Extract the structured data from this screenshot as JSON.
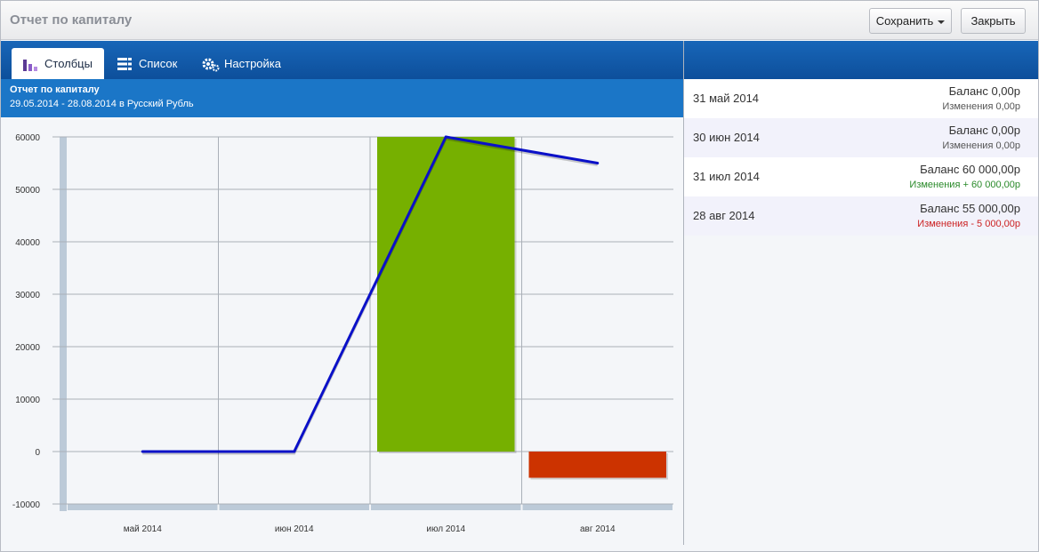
{
  "window": {
    "title": "Отчет по капиталу"
  },
  "toolbar": {
    "save_label": "Сохранить",
    "close_label": "Закрыть"
  },
  "tabs": [
    {
      "label": "Столбцы",
      "icon": "bar-chart-icon",
      "active": true
    },
    {
      "label": "Список",
      "icon": "list-icon",
      "active": false
    },
    {
      "label": "Настройка",
      "icon": "gears-icon",
      "active": false
    }
  ],
  "report": {
    "title": "Отчет по капиталу",
    "range": "29.05.2014 - 28.08.2014 в Русский Рубль"
  },
  "colors": {
    "header_blue": "#1b76c7",
    "positive": "#76b000",
    "negative": "#cc3300",
    "line": "#0a10c8"
  },
  "chart_data": {
    "type": "bar",
    "categories": [
      "май 2014",
      "июн 2014",
      "июл 2014",
      "авг 2014"
    ],
    "series": [
      {
        "kind": "bar",
        "values": [
          0,
          0,
          60000,
          -5000
        ]
      },
      {
        "kind": "line",
        "values": [
          0,
          0,
          60000,
          55000
        ]
      }
    ],
    "yticks": [
      "60000",
      "50000",
      "40000",
      "30000",
      "20000",
      "10000",
      "0",
      "-10000"
    ],
    "ylim": [
      -10000,
      60000
    ],
    "grid": true
  },
  "entries": [
    {
      "date": "31 май 2014",
      "balance": "Баланс 0,00р",
      "change": "Изменения  0,00р",
      "kind": "neutral"
    },
    {
      "date": "30 июн 2014",
      "balance": "Баланс 0,00р",
      "change": "Изменения  0,00р",
      "kind": "neutral"
    },
    {
      "date": "31 июл 2014",
      "balance": "Баланс 60 000,00р",
      "change": "Изменения + 60 000,00р",
      "kind": "pos"
    },
    {
      "date": "28 авг 2014",
      "balance": "Баланс 55 000,00р",
      "change": "Изменения - 5 000,00р",
      "kind": "neg"
    }
  ]
}
